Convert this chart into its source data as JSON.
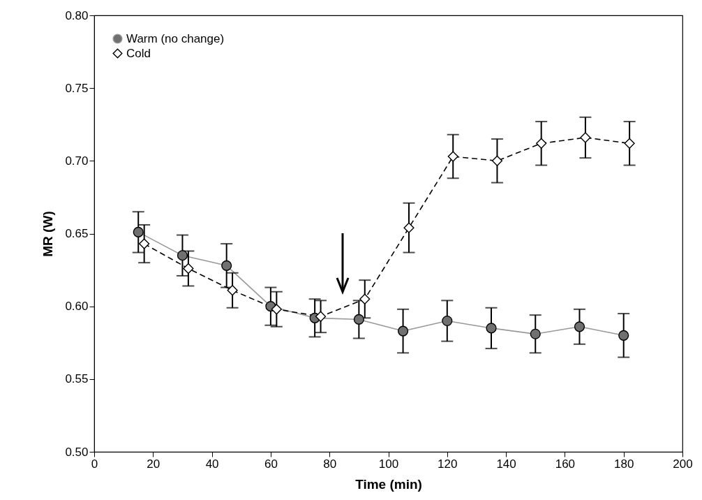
{
  "chart_data": {
    "type": "line",
    "xlabel": "Time (min)",
    "ylabel": "MR (W)",
    "xlim": [
      0,
      200
    ],
    "xticks": [
      0,
      20,
      40,
      60,
      80,
      100,
      120,
      140,
      160,
      180,
      200
    ],
    "ylim": [
      0.5,
      0.8
    ],
    "yticks": [
      {
        "value": 0.5,
        "label": "0.50"
      },
      0.55,
      {
        "value": 0.6,
        "label": "0.60"
      },
      0.65,
      {
        "value": 0.7,
        "label": "0.70"
      },
      0.75,
      {
        "value": 0.8,
        "label": "0.80"
      }
    ],
    "grid": false,
    "legend": "top left",
    "series": [
      {
        "name": "Warm (no change)",
        "color": "#999999",
        "marker": "circle",
        "line_style": "solid",
        "x": [
          15,
          30,
          45,
          60,
          75,
          90,
          105,
          120,
          135,
          150,
          165,
          180
        ],
        "values": [
          0.651,
          0.635,
          0.628,
          0.6,
          0.592,
          0.591,
          0.583,
          0.59,
          0.585,
          0.581,
          0.586,
          0.58
        ],
        "errors": [
          0.014,
          0.014,
          0.015,
          0.013,
          0.013,
          0.013,
          0.015,
          0.014,
          0.014,
          0.013,
          0.012,
          0.015
        ]
      },
      {
        "name": "Cold",
        "color": "#000000",
        "marker": "diamond",
        "line_style": "dashed",
        "x": [
          17,
          32,
          47,
          62,
          77,
          92,
          107,
          122,
          137,
          152,
          167,
          182
        ],
        "values": [
          0.643,
          0.626,
          0.611,
          0.598,
          0.593,
          0.605,
          0.654,
          0.703,
          0.7,
          0.712,
          0.716,
          0.712
        ],
        "errors": [
          0.013,
          0.012,
          0.012,
          0.012,
          0.011,
          0.013,
          0.017,
          0.015,
          0.015,
          0.015,
          0.014,
          0.015
        ]
      }
    ]
  }
}
